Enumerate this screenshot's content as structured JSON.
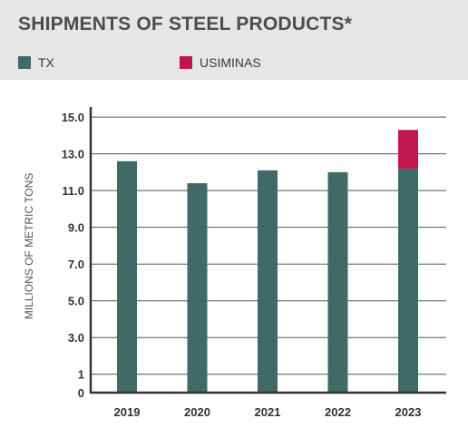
{
  "title": "SHIPMENTS OF STEEL PRODUCTS*",
  "colors": {
    "band": "#e6e6e6",
    "TX": "#3f6a66",
    "USIMINAS": "#c0174f",
    "axis": "#333333",
    "grid": "#555555"
  },
  "legend": [
    {
      "name": "TX",
      "color": "#3f6a66"
    },
    {
      "name": "USIMINAS",
      "color": "#c0174f"
    }
  ],
  "chart_data": {
    "type": "bar",
    "stacked": true,
    "title": "SHIPMENTS OF STEEL PRODUCTS*",
    "xlabel": "",
    "ylabel": "MILLIONS OF METRIC TONS",
    "categories": [
      "2019",
      "2020",
      "2021",
      "2022",
      "2023"
    ],
    "series": [
      {
        "name": "TX",
        "color": "#3f6a66",
        "values": [
          12.6,
          11.4,
          12.1,
          12.0,
          12.2
        ]
      },
      {
        "name": "USIMINAS",
        "color": "#c0174f",
        "values": [
          0,
          0,
          0,
          0,
          2.1
        ]
      }
    ],
    "yticks": [
      0,
      1,
      3.0,
      5.0,
      7.0,
      9.0,
      11.0,
      13.0,
      15.0
    ],
    "ytick_labels": [
      "0",
      "1",
      "3.0",
      "5.0",
      "7.0",
      "9.0",
      "11.0",
      "13.0",
      "15.0"
    ],
    "ylim": [
      0,
      15.5
    ],
    "grid": true,
    "legend_position": "top"
  }
}
